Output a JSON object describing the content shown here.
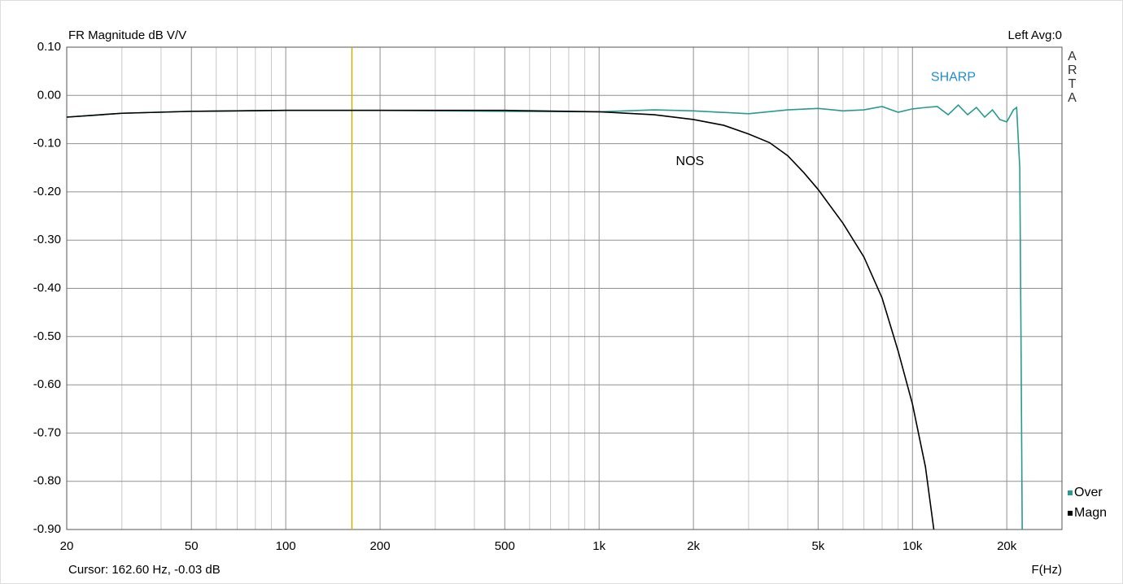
{
  "chart_data": {
    "type": "line",
    "title": "FR Magnitude dB V/V",
    "top_right": "Left  Avg:0",
    "side_label": "ARTA",
    "xlabel": "F(Hz)",
    "cursor_text": "Cursor: 162.60 Hz, -0.03 dB",
    "cursor": {
      "x": 162.6,
      "color": "#c8b400"
    },
    "log_x": true,
    "grid": true,
    "xlim": [
      20,
      30000
    ],
    "ylim": [
      -0.9,
      0.1
    ],
    "xticks": [
      20,
      50,
      100,
      200,
      500,
      {
        "value": 1000,
        "label": "1k"
      },
      {
        "value": 2000,
        "label": "2k"
      },
      {
        "value": 5000,
        "label": "5k"
      },
      {
        "value": 10000,
        "label": "10k"
      },
      {
        "value": 20000,
        "label": "20k"
      }
    ],
    "xminor": [
      30,
      40,
      60,
      70,
      80,
      90,
      300,
      400,
      600,
      700,
      800,
      900,
      3000,
      4000,
      6000,
      7000,
      8000,
      9000
    ],
    "yticks": [
      {
        "value": 0.1,
        "label": "0.10"
      },
      {
        "value": 0,
        "label": "0.00"
      },
      {
        "value": -0.1,
        "label": "-0.10"
      },
      {
        "value": -0.2,
        "label": "-0.20"
      },
      {
        "value": -0.3,
        "label": "-0.30"
      },
      {
        "value": -0.4,
        "label": "-0.40"
      },
      {
        "value": -0.5,
        "label": "-0.50"
      },
      {
        "value": -0.6,
        "label": "-0.60"
      },
      {
        "value": -0.7,
        "label": "-0.70"
      },
      {
        "value": -0.8,
        "label": "-0.80"
      },
      {
        "value": -0.9,
        "label": "-0.90"
      }
    ],
    "annotations": [
      {
        "text": "SHARP",
        "x": 13500,
        "y": 0.037,
        "color": "#1f8dd6"
      },
      {
        "text": "NOS",
        "x": 1950,
        "y": -0.137,
        "color": "#000000"
      }
    ],
    "legend": "bottom-right",
    "series": [
      {
        "name": "Over",
        "color": "#2a9a8f",
        "x": [
          20,
          30,
          50,
          100,
          200,
          500,
          1000,
          1500,
          2000,
          3000,
          4000,
          5000,
          6000,
          7000,
          8000,
          9000,
          10000,
          11000,
          12000,
          13000,
          14000,
          15000,
          16000,
          17000,
          18000,
          19000,
          20000,
          21000,
          21500,
          22000,
          22200,
          22400
        ],
        "values": [
          -0.045,
          -0.037,
          -0.033,
          -0.031,
          -0.031,
          -0.033,
          -0.034,
          -0.03,
          -0.032,
          -0.038,
          -0.03,
          -0.027,
          -0.032,
          -0.03,
          -0.023,
          -0.035,
          -0.028,
          -0.025,
          -0.023,
          -0.04,
          -0.02,
          -0.04,
          -0.025,
          -0.045,
          -0.03,
          -0.05,
          -0.055,
          -0.03,
          -0.025,
          -0.15,
          -0.5,
          -0.9
        ]
      },
      {
        "name": "Magn",
        "color": "#000000",
        "x": [
          20,
          30,
          50,
          100,
          200,
          500,
          1000,
          1500,
          2000,
          2500,
          3000,
          3500,
          4000,
          4500,
          5000,
          6000,
          7000,
          8000,
          9000,
          10000,
          11000,
          11700
        ],
        "values": [
          -0.045,
          -0.037,
          -0.033,
          -0.031,
          -0.031,
          -0.031,
          -0.034,
          -0.04,
          -0.05,
          -0.062,
          -0.08,
          -0.098,
          -0.125,
          -0.16,
          -0.195,
          -0.265,
          -0.335,
          -0.42,
          -0.53,
          -0.64,
          -0.77,
          -0.9
        ]
      }
    ]
  }
}
